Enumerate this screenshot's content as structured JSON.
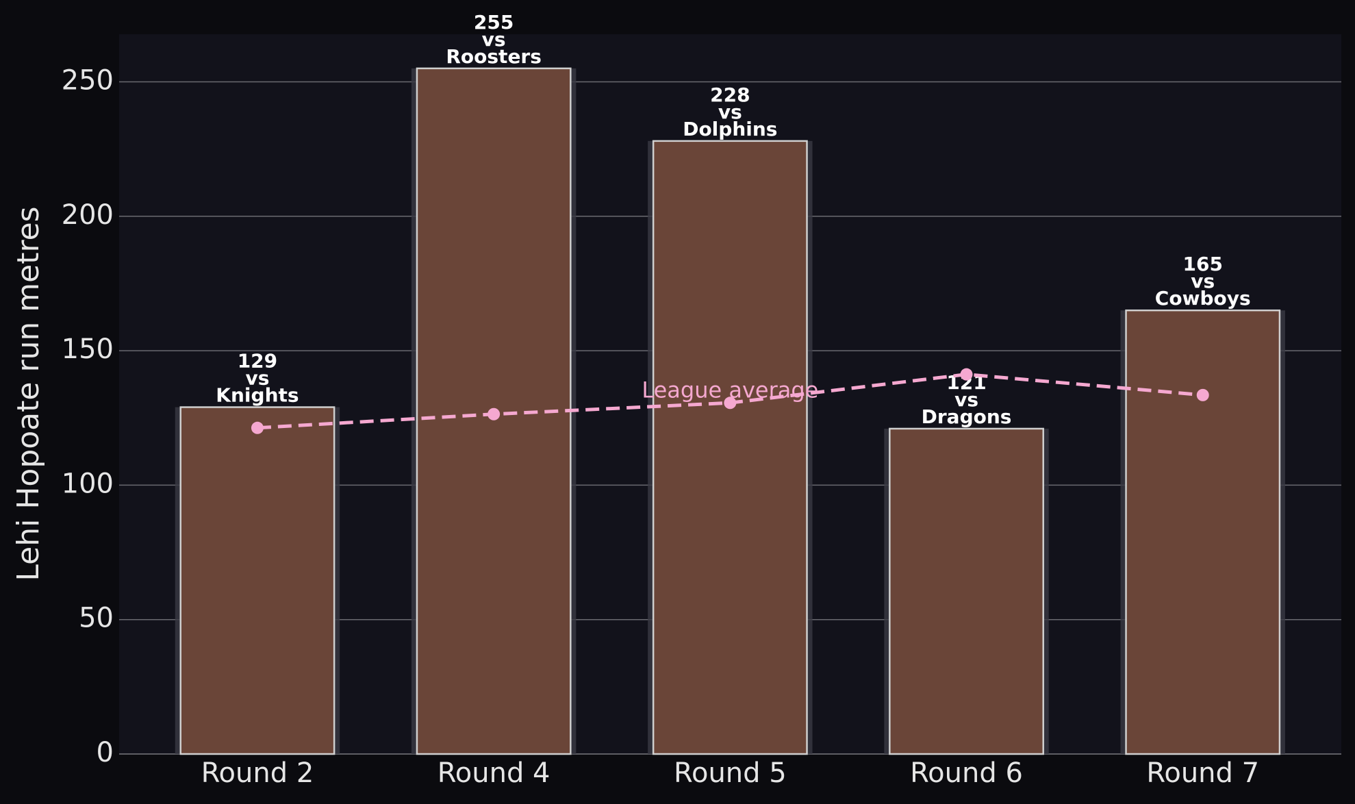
{
  "chart_data": {
    "type": "bar",
    "ylabel": "Lehi Hopoate run metres",
    "categories": [
      "Round 2",
      "Round 4",
      "Round 5",
      "Round 6",
      "Round 7"
    ],
    "values": [
      129,
      255,
      228,
      121,
      165
    ],
    "connector": "vs",
    "opponents": [
      "Knights",
      "Roosters",
      "Dolphins",
      "Dragons",
      "Cowboys"
    ],
    "color": "#6a4538",
    "series": [
      {
        "type": "line",
        "values": [
          121.3,
          126.4,
          130.6,
          141.2,
          133.5
        ],
        "color": "#f5a8d0"
      }
    ],
    "annotation": "League average",
    "ylim": [
      0,
      267.7
    ],
    "yticks": [
      0,
      50,
      100,
      150,
      200,
      250
    ],
    "grid": true
  }
}
